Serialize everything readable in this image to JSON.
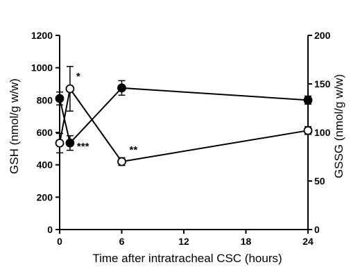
{
  "chart_data": {
    "type": "line",
    "xlabel": "Time after intratracheal CSC (hours)",
    "ylabel": "GSH (nmol/g w/w)",
    "y2label": "GSSG (nmol/g w/w)",
    "xlim": [
      0,
      24
    ],
    "ylim": [
      0,
      1200
    ],
    "y2lim": [
      0,
      200
    ],
    "xticks": [
      "0",
      "6",
      "12",
      "18",
      "24"
    ],
    "yticks": [
      "0",
      "200",
      "400",
      "600",
      "800",
      "1000",
      "1200"
    ],
    "y2ticks": [
      "0",
      "50",
      "100",
      "150",
      "200"
    ],
    "grid": false,
    "series": [
      {
        "axis": "left",
        "marker": "filled-circle",
        "color": "#000000",
        "x": [
          0,
          1,
          6,
          24
        ],
        "y": [
          810,
          535,
          875,
          800
        ],
        "err": [
          40,
          45,
          45,
          25
        ]
      },
      {
        "axis": "right",
        "marker": "open-circle",
        "color": "#000000",
        "x": [
          0,
          1,
          6,
          24
        ],
        "y": [
          89,
          145,
          70,
          102
        ],
        "err": [
          10,
          23,
          4,
          4
        ]
      }
    ],
    "annotations": [
      {
        "text": "*",
        "x": 1,
        "series": 1
      },
      {
        "text": "***",
        "x": 1,
        "series": 0
      },
      {
        "text": "**",
        "x": 6,
        "series": 1
      }
    ]
  }
}
